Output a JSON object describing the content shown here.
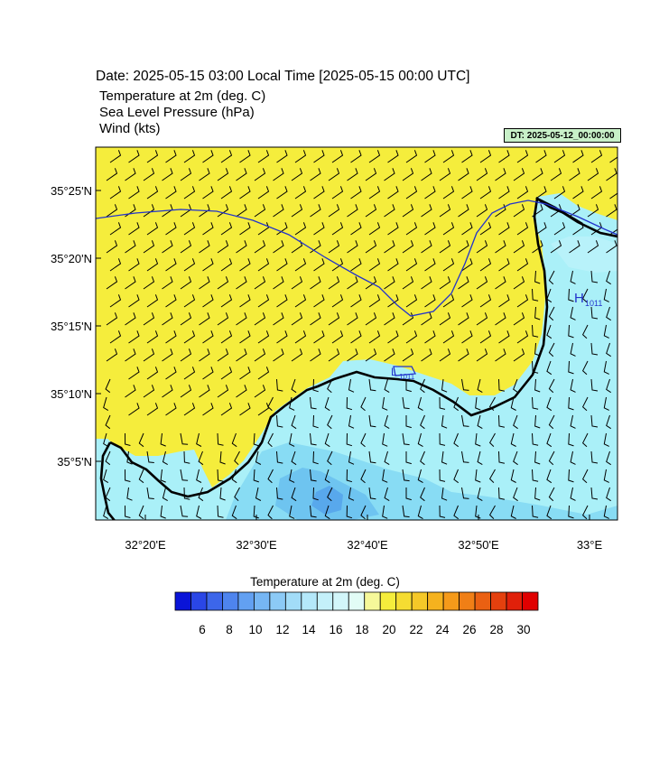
{
  "header": {
    "date_line": "Date: 2025-05-15  03:00 Local Time [2025-05-15  00:00 UTC]",
    "line1": "Temperature at 2m   (deg. C)",
    "line2": "Sea Level Pressure   (hPa)",
    "line3": "Wind   (kts)",
    "dt_badge": "DT: 2025-05-12_00:00:00"
  },
  "map": {
    "lat_ticks": [
      "35°25'N",
      "35°20'N",
      "35°15'N",
      "35°10'N",
      "35°5'N"
    ],
    "lon_ticks": [
      "32°20'E",
      "32°30'E",
      "32°40'E",
      "32°50'E",
      "33°E"
    ],
    "pressure_labels": [
      {
        "symbol": "H",
        "value": "1011"
      },
      {
        "symbol": "L",
        "value": "1011"
      }
    ],
    "colors": {
      "land_warm": "#f5ed3c",
      "sea_light": "#aaf0f8",
      "sea_mid": "#88dcf4",
      "sea_deep": "#6ec4f0",
      "sea_deepest": "#58a8ec",
      "coast": "#000000",
      "isobar": "#2233cc"
    }
  },
  "colorbar": {
    "title": "Temperature at 2m  (deg. C)",
    "labels": [
      "6",
      "8",
      "10",
      "12",
      "14",
      "16",
      "18",
      "20",
      "22",
      "24",
      "26",
      "28",
      "30"
    ],
    "colors": [
      "#0a14d8",
      "#2a46e6",
      "#3c66ea",
      "#4e84ee",
      "#62a0f2",
      "#76b6f4",
      "#8ccaf6",
      "#a2dcf8",
      "#b4e8fa",
      "#c4f0fa",
      "#d2f6fa",
      "#e2fcf6",
      "#f6f89a",
      "#f5ed3c",
      "#f5dc32",
      "#f5c828",
      "#f5b21e",
      "#f59a1a",
      "#f07f16",
      "#ea6012",
      "#e4400e",
      "#e0200a",
      "#e00000"
    ]
  }
}
